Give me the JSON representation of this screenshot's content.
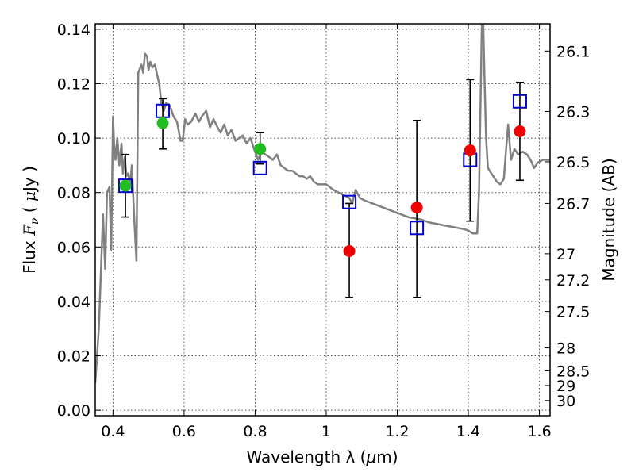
{
  "chart_data": {
    "type": "scatter",
    "xlabel_parts": [
      "Wavelength  λ (",
      "μ",
      "m)"
    ],
    "ylabel_parts": [
      "Flux  ",
      "F",
      "ν",
      "  ( ",
      "μ",
      "Jy )"
    ],
    "y2label": "Magnitude (AB)",
    "xlim": [
      0.35,
      1.63
    ],
    "ylim": [
      -0.002,
      0.142
    ],
    "grid": true,
    "x_ticks": [
      0.4,
      0.6,
      0.8,
      1.0,
      1.2,
      1.4,
      1.6
    ],
    "x_tick_labels": [
      "0.4",
      "0.6",
      "0.8",
      "1",
      "1.2",
      "1.4",
      "1.6"
    ],
    "y_ticks": [
      0.0,
      0.02,
      0.04,
      0.06,
      0.08,
      0.1,
      0.12,
      0.14
    ],
    "y_tick_labels": [
      "0.00",
      "0.02",
      "0.04",
      "0.06",
      "0.08",
      "0.10",
      "0.12",
      "0.14"
    ],
    "y2_ticks": [
      {
        "label": "26.1",
        "flux": 0.132
      },
      {
        "label": "26.3",
        "flux": 0.1098
      },
      {
        "label": "26.5",
        "flux": 0.0913
      },
      {
        "label": "26.7",
        "flux": 0.076
      },
      {
        "label": "27",
        "flux": 0.0575
      },
      {
        "label": "27.2",
        "flux": 0.0479
      },
      {
        "label": "27.5",
        "flux": 0.0363
      },
      {
        "label": "28",
        "flux": 0.0229
      },
      {
        "label": "28.5",
        "flux": 0.0145
      },
      {
        "label": "29",
        "flux": 0.0091
      },
      {
        "label": "30",
        "flux": 0.0036
      }
    ],
    "colors": {
      "sed": "#808080",
      "model_marker": "#0000cc",
      "optical": "#22bb22",
      "nir": "#ee0000",
      "errorbar": "#000000",
      "grid": "#555555"
    },
    "model_fluxes": [
      {
        "x": 0.435,
        "y": 0.0825
      },
      {
        "x": 0.54,
        "y": 0.11
      },
      {
        "x": 0.814,
        "y": 0.089
      },
      {
        "x": 1.065,
        "y": 0.0765
      },
      {
        "x": 1.255,
        "y": 0.067
      },
      {
        "x": 1.405,
        "y": 0.092
      },
      {
        "x": 1.545,
        "y": 0.1135
      }
    ],
    "observed_optical": [
      {
        "x": 0.435,
        "y": 0.0825,
        "err_lo": 0.071,
        "err_hi": 0.094
      },
      {
        "x": 0.54,
        "y": 0.1055,
        "err_lo": 0.096,
        "err_hi": 0.1145
      },
      {
        "x": 0.814,
        "y": 0.096,
        "err_lo": 0.0905,
        "err_hi": 0.102
      }
    ],
    "observed_nir": [
      {
        "x": 1.065,
        "y": 0.0585,
        "err_lo": 0.0415,
        "err_hi": 0.076
      },
      {
        "x": 1.255,
        "y": 0.0745,
        "err_lo": 0.0415,
        "err_hi": 0.1065
      },
      {
        "x": 1.405,
        "y": 0.0955,
        "err_lo": 0.0695,
        "err_hi": 0.1215
      },
      {
        "x": 1.545,
        "y": 0.1025,
        "err_lo": 0.0845,
        "err_hi": 0.1205
      }
    ],
    "sed_curve": [
      [
        0.35,
        0.01
      ],
      [
        0.36,
        0.03
      ],
      [
        0.372,
        0.072
      ],
      [
        0.378,
        0.052
      ],
      [
        0.383,
        0.08
      ],
      [
        0.39,
        0.082
      ],
      [
        0.395,
        0.059
      ],
      [
        0.4,
        0.108
      ],
      [
        0.403,
        0.098
      ],
      [
        0.407,
        0.092
      ],
      [
        0.412,
        0.1
      ],
      [
        0.418,
        0.09
      ],
      [
        0.424,
        0.098
      ],
      [
        0.428,
        0.087
      ],
      [
        0.433,
        0.093
      ],
      [
        0.438,
        0.086
      ],
      [
        0.443,
        0.087
      ],
      [
        0.448,
        0.083
      ],
      [
        0.453,
        0.09
      ],
      [
        0.46,
        0.07
      ],
      [
        0.466,
        0.055
      ],
      [
        0.471,
        0.124
      ],
      [
        0.48,
        0.127
      ],
      [
        0.485,
        0.124
      ],
      [
        0.49,
        0.131
      ],
      [
        0.496,
        0.13
      ],
      [
        0.5,
        0.125
      ],
      [
        0.505,
        0.128
      ],
      [
        0.511,
        0.126
      ],
      [
        0.518,
        0.127
      ],
      [
        0.523,
        0.124
      ],
      [
        0.53,
        0.12
      ],
      [
        0.536,
        0.113
      ],
      [
        0.543,
        0.11
      ],
      [
        0.55,
        0.113
      ],
      [
        0.56,
        0.112
      ],
      [
        0.57,
        0.108
      ],
      [
        0.58,
        0.106
      ],
      [
        0.586,
        0.102
      ],
      [
        0.59,
        0.099
      ],
      [
        0.596,
        0.099
      ],
      [
        0.603,
        0.107
      ],
      [
        0.61,
        0.105
      ],
      [
        0.62,
        0.106
      ],
      [
        0.632,
        0.109
      ],
      [
        0.642,
        0.106
      ],
      [
        0.65,
        0.108
      ],
      [
        0.662,
        0.11
      ],
      [
        0.673,
        0.104
      ],
      [
        0.683,
        0.107
      ],
      [
        0.694,
        0.104
      ],
      [
        0.703,
        0.102
      ],
      [
        0.713,
        0.105
      ],
      [
        0.723,
        0.101
      ],
      [
        0.733,
        0.103
      ],
      [
        0.745,
        0.099
      ],
      [
        0.755,
        0.1
      ],
      [
        0.765,
        0.101
      ],
      [
        0.776,
        0.098
      ],
      [
        0.787,
        0.1
      ],
      [
        0.797,
        0.096
      ],
      [
        0.808,
        0.092
      ],
      [
        0.818,
        0.095
      ],
      [
        0.829,
        0.094
      ],
      [
        0.84,
        0.093
      ],
      [
        0.85,
        0.092
      ],
      [
        0.861,
        0.094
      ],
      [
        0.872,
        0.09
      ],
      [
        0.882,
        0.089
      ],
      [
        0.893,
        0.088
      ],
      [
        0.905,
        0.088
      ],
      [
        0.915,
        0.087
      ],
      [
        0.925,
        0.086
      ],
      [
        0.935,
        0.086
      ],
      [
        0.945,
        0.085
      ],
      [
        0.955,
        0.086
      ],
      [
        0.965,
        0.084
      ],
      [
        0.977,
        0.083
      ],
      [
        0.99,
        0.083
      ],
      [
        1.0,
        0.083
      ],
      [
        1.01,
        0.082
      ],
      [
        1.02,
        0.081
      ],
      [
        1.035,
        0.08
      ],
      [
        1.05,
        0.079
      ],
      [
        1.065,
        0.078
      ],
      [
        1.073,
        0.076
      ],
      [
        1.083,
        0.081
      ],
      [
        1.095,
        0.078
      ],
      [
        1.11,
        0.077
      ],
      [
        1.13,
        0.076
      ],
      [
        1.15,
        0.075
      ],
      [
        1.17,
        0.074
      ],
      [
        1.19,
        0.073
      ],
      [
        1.21,
        0.072
      ],
      [
        1.23,
        0.071
      ],
      [
        1.25,
        0.0705
      ],
      [
        1.27,
        0.07
      ],
      [
        1.29,
        0.069
      ],
      [
        1.31,
        0.0685
      ],
      [
        1.33,
        0.068
      ],
      [
        1.35,
        0.0675
      ],
      [
        1.37,
        0.067
      ],
      [
        1.39,
        0.0665
      ],
      [
        1.4,
        0.066
      ],
      [
        1.412,
        0.065
      ],
      [
        1.425,
        0.065
      ],
      [
        1.43,
        0.08
      ],
      [
        1.438,
        0.142
      ],
      [
        1.442,
        0.142
      ],
      [
        1.446,
        0.12
      ],
      [
        1.45,
        0.1
      ],
      [
        1.455,
        0.089
      ],
      [
        1.46,
        0.088
      ],
      [
        1.47,
        0.086
      ],
      [
        1.48,
        0.084
      ],
      [
        1.49,
        0.083
      ],
      [
        1.5,
        0.085
      ],
      [
        1.507,
        0.097
      ],
      [
        1.512,
        0.105
      ],
      [
        1.52,
        0.092
      ],
      [
        1.53,
        0.096
      ],
      [
        1.54,
        0.094
      ],
      [
        1.553,
        0.095
      ],
      [
        1.565,
        0.094
      ],
      [
        1.575,
        0.092
      ],
      [
        1.585,
        0.089
      ],
      [
        1.595,
        0.091
      ],
      [
        1.61,
        0.092
      ],
      [
        1.63,
        0.092
      ]
    ]
  }
}
